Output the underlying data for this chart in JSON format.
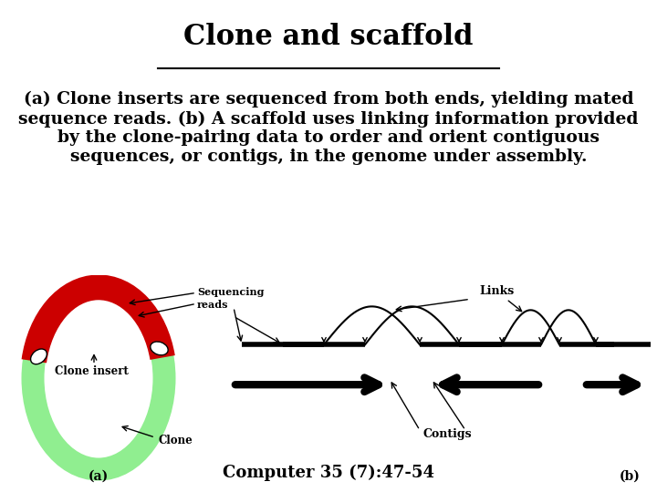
{
  "title": "Clone and scaffold",
  "title_fontsize": 22,
  "body_text": "(a) Clone inserts are sequenced from both ends, yielding mated\nsequence reads. (b) A scaffold uses linking information provided\nby the clone-pairing data to order and orient contiguous\nsequences, or contigs, in the genome under assembly.",
  "body_fontsize": 13.5,
  "footer_text": "Computer 35 (7):47-54",
  "footer_fontsize": 13,
  "bg_top": "#ffffff",
  "diagram_bg": "#f5deb3",
  "circle_green": "#90ee90",
  "circle_red": "#cc0000",
  "clone_label": "Clone insert",
  "clone_arrow_label": "Clone",
  "seq_reads_label": "Sequencing\nreads",
  "links_label": "Links",
  "contigs_label": "Contigs",
  "label_a": "(a)",
  "label_b": "(b)"
}
